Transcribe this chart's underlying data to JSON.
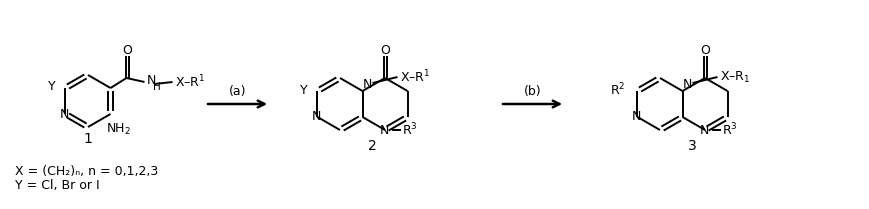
{
  "background_color": "#ffffff",
  "figsize": [
    8.7,
    2.09
  ],
  "dpi": 100,
  "compound1_label": "1",
  "compound2_label": "2",
  "compound3_label": "3",
  "arrow1_label": "(a)",
  "arrow2_label": "(b)",
  "footnote1": "X = (CH₂)ₙ, n = 0,1,2,3",
  "footnote2": "Y = Cl, Br or I",
  "text_color": "#000000",
  "font_size": 9,
  "font_size_small": 7.5
}
